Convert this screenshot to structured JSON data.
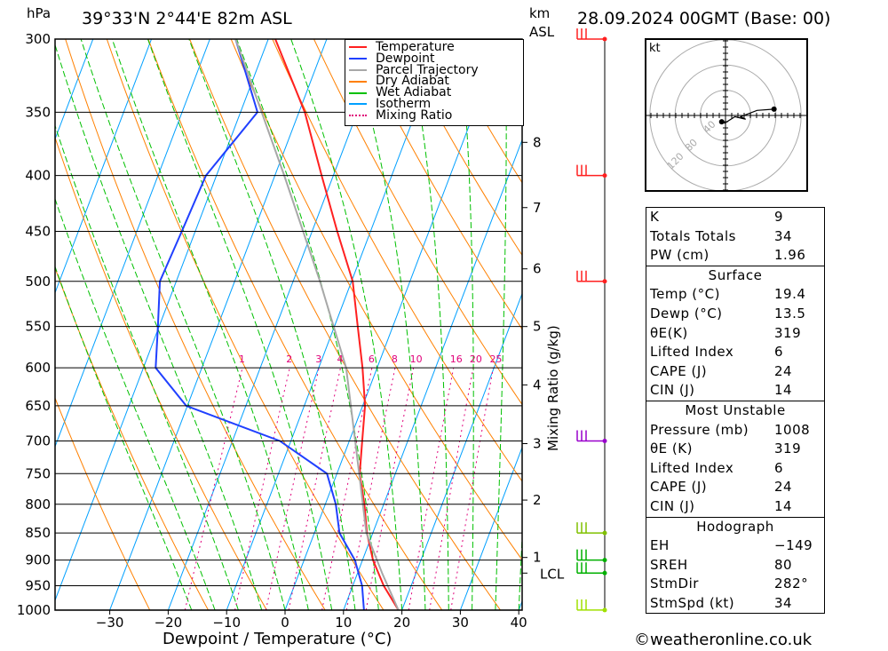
{
  "header": {
    "pressure_unit": "hPa",
    "location": "39°33'N 2°44'E 82m ASL",
    "km_label": "km",
    "asl_label": "ASL",
    "date": "28.09.2024 00GMT (Base: 00)"
  },
  "footer": {
    "copyright": "©weatheronline.co.uk"
  },
  "colors": {
    "temperature": "#ff2020",
    "dewpoint": "#2040ff",
    "parcel": "#a8a8a8",
    "dry": "#ff8000",
    "wet": "#00c000",
    "isotherm": "#00a0ff",
    "mixing": "#e0007a"
  },
  "chart_data": {
    "type": "line",
    "title": "Skew-T log-P",
    "xlabel": "Dewpoint / Temperature (°C)",
    "ylabel": "hPa",
    "y2label": "Mixing Ratio (g/kg)",
    "xlim": [
      -40,
      40
    ],
    "ylim": [
      1000,
      300
    ],
    "x_ticks": [
      "-30",
      "-20",
      "-10",
      "0",
      "10",
      "20",
      "30",
      "40"
    ],
    "y_ticks": [
      "300",
      "350",
      "400",
      "450",
      "500",
      "550",
      "600",
      "650",
      "700",
      "750",
      "800",
      "850",
      "900",
      "950",
      "1000"
    ],
    "km_ticks": [
      {
        "label": "8",
        "p": 373
      },
      {
        "label": "7",
        "p": 428
      },
      {
        "label": "6",
        "p": 487
      },
      {
        "label": "5",
        "p": 550
      },
      {
        "label": "4",
        "p": 622
      },
      {
        "label": "3",
        "p": 704
      },
      {
        "label": "2",
        "p": 793
      },
      {
        "label": "1",
        "p": 895
      }
    ],
    "lcl_label": "LCL",
    "lcl_p": 925,
    "mixing_ratio_labels": [
      "1",
      "2",
      "3",
      "4",
      "6",
      "8",
      "10",
      "16",
      "20",
      "25"
    ],
    "legend": [
      "Temperature",
      "Dewpoint",
      "Parcel Trajectory",
      "Dry Adiabat",
      "Wet Adiabat",
      "Isotherm",
      "Mixing Ratio"
    ],
    "legend_position": "top-right",
    "pressure": [
      1000,
      950,
      900,
      850,
      800,
      750,
      700,
      650,
      600,
      550,
      500,
      450,
      400,
      350,
      300
    ],
    "series": [
      {
        "name": "Temperature",
        "values": [
          19.4,
          15.3,
          11.8,
          9.0,
          6.7,
          3.9,
          2.2,
          0.4,
          -2.5,
          -6.0,
          -9.8,
          -15.7,
          -22.0,
          -29.0,
          -38.8
        ]
      },
      {
        "name": "Dewpoint",
        "values": [
          13.5,
          11.6,
          8.7,
          4.3,
          1.8,
          -1.7,
          -11.9,
          -30.2,
          -37.9,
          -40.2,
          -42.8,
          -42.3,
          -41.8,
          -37.1,
          -45.6
        ]
      },
      {
        "name": "Parcel Trajectory",
        "pressure": [
          1000,
          925,
          850,
          700,
          600,
          500,
          400,
          300
        ],
        "values": [
          19.4,
          14.2,
          8.9,
          1.0,
          -5.3,
          -15.4,
          -28.4,
          -45.6
        ]
      }
    ],
    "wind_levels": [
      {
        "p": 300,
        "color": "#ff2020"
      },
      {
        "p": 400,
        "color": "#ff2020"
      },
      {
        "p": 500,
        "color": "#ff2020"
      },
      {
        "p": 700,
        "color": "#9900cc"
      },
      {
        "p": 850,
        "color": "#80c000"
      },
      {
        "p": 900,
        "color": "#00b000"
      },
      {
        "p": 925,
        "color": "#00b000"
      },
      {
        "p": 1000,
        "color": "#a0e000"
      }
    ],
    "hodograph": {
      "unit_label": "kt",
      "ring_labels": [
        "40",
        "80",
        "120"
      ],
      "points": [
        [
          -6,
          -10
        ],
        [
          -1,
          -12
        ],
        [
          15,
          -2
        ],
        [
          32,
          -6
        ],
        [
          24,
          -2
        ],
        [
          50,
          8
        ],
        [
          77,
          10
        ]
      ]
    }
  },
  "indices": {
    "rows": [
      {
        "k": "K",
        "v": "9"
      },
      {
        "k": "Totals Totals",
        "v": "34"
      },
      {
        "k": "PW (cm)",
        "v": "1.96"
      }
    ],
    "surface": {
      "title": "Surface",
      "rows": [
        {
          "k": "Temp (°C)",
          "v": "19.4"
        },
        {
          "k": "Dewp (°C)",
          "v": "13.5"
        },
        {
          "k": "θE(K)",
          "v": "319"
        },
        {
          "k": "Lifted Index",
          "v": "6"
        },
        {
          "k": "CAPE (J)",
          "v": "24"
        },
        {
          "k": "CIN (J)",
          "v": "14"
        }
      ]
    },
    "unstable": {
      "title": "Most Unstable",
      "rows": [
        {
          "k": "Pressure (mb)",
          "v": "1008"
        },
        {
          "k": "θE (K)",
          "v": "319"
        },
        {
          "k": "Lifted Index",
          "v": "6"
        },
        {
          "k": "CAPE (J)",
          "v": "24"
        },
        {
          "k": "CIN (J)",
          "v": "14"
        }
      ]
    },
    "hodograph": {
      "title": "Hodograph",
      "rows": [
        {
          "k": "EH",
          "v": "−149"
        },
        {
          "k": "SREH",
          "v": "80"
        },
        {
          "k": "StmDir",
          "v": "282°"
        },
        {
          "k": "StmSpd (kt)",
          "v": "34"
        }
      ]
    }
  }
}
